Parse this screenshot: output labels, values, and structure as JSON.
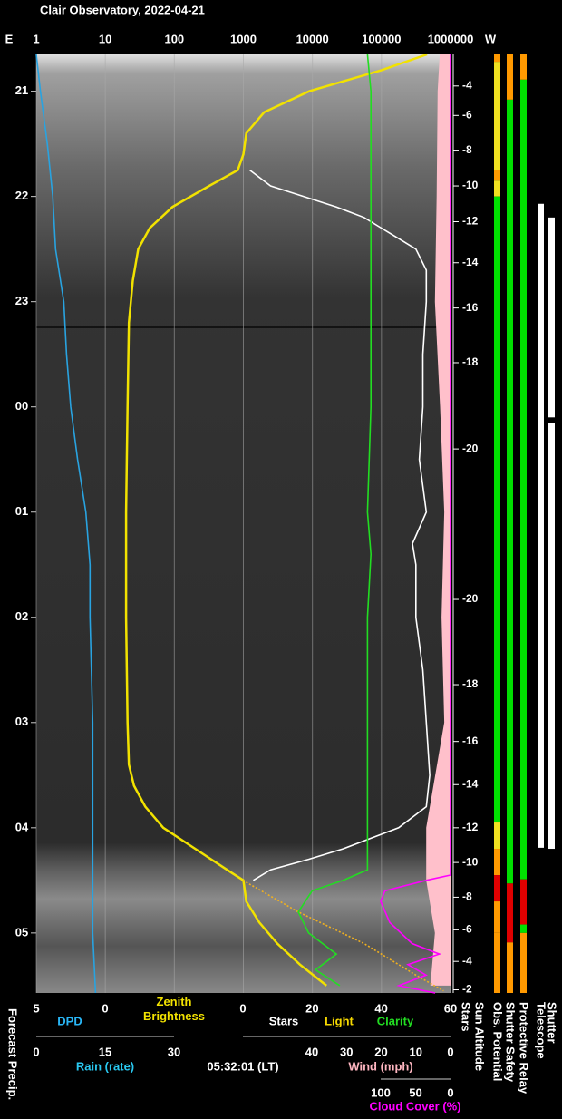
{
  "chart_data": {
    "type": "line",
    "title": "Clair Observatory, 2022-04-21",
    "left_label": "E",
    "right_label": "W",
    "timestamp": "05:32:01 (LT)",
    "side_labels": {
      "forecast_precip": "Forecast Precip.",
      "stars": "Stars"
    },
    "ylim": [
      20.65,
      29.57
    ],
    "yticks": [
      21,
      22,
      23,
      {
        "value": 24,
        "label": "00"
      },
      {
        "value": 25,
        "label": "01"
      },
      {
        "value": 26,
        "label": "02"
      },
      {
        "value": 27,
        "label": "03"
      },
      {
        "value": 28,
        "label": "04"
      },
      {
        "value": 29,
        "label": "05"
      }
    ],
    "grid": true,
    "x_axes": {
      "brightness": {
        "xlim": [
          1,
          1000000
        ],
        "xticks": [
          1,
          10,
          100,
          1000,
          10000,
          100000,
          1000000
        ],
        "log": true
      },
      "dpd": {
        "xlim": [
          5,
          0
        ],
        "xticks": [
          5,
          0
        ]
      },
      "percent": {
        "xlim": [
          0,
          60
        ],
        "xticks": [
          0,
          20,
          40,
          60
        ]
      },
      "rain": {
        "xlim": [
          0,
          30
        ],
        "xticks": [
          0,
          15,
          30
        ],
        "label": "Rain (rate)",
        "color": "#29c8f0"
      },
      "wind": {
        "xlim": [
          40,
          0
        ],
        "xticks": [
          40,
          30,
          20,
          10,
          0
        ]
      },
      "cloud": {
        "xlim": [
          100,
          0
        ],
        "xticks": [
          100,
          50,
          0
        ]
      }
    },
    "series": [
      {
        "name": "DPD",
        "axis": "dpd",
        "color": "#29a3e0",
        "times": [
          20.65,
          21,
          21.5,
          22,
          22.5,
          23,
          23.5,
          24,
          24.5,
          25,
          25.5,
          26,
          27,
          28,
          29,
          29.57
        ],
        "values": [
          5.0,
          4.7,
          4.2,
          3.8,
          3.6,
          3.0,
          2.8,
          2.5,
          2.0,
          1.4,
          1.1,
          1.1,
          0.9,
          0.9,
          0.9,
          0.7
        ]
      },
      {
        "name": "Zenith Brightness",
        "axis": "brightness",
        "color": "#f2e200",
        "times": [
          20.65,
          20.8,
          21,
          21.2,
          21.4,
          21.6,
          21.75,
          21.9,
          22.1,
          22.3,
          22.5,
          22.8,
          23.2,
          24,
          25,
          26,
          27,
          27.4,
          27.6,
          27.8,
          28,
          28.2,
          28.4,
          28.5,
          28.7,
          28.9,
          29.1,
          29.3,
          29.5
        ],
        "values": [
          457000,
          100000,
          9000,
          2000,
          1100,
          1000,
          830,
          320,
          94,
          44,
          30,
          25,
          22,
          21,
          20,
          20,
          21,
          22,
          26,
          38,
          69,
          200,
          580,
          1000,
          1100,
          1700,
          3100,
          6600,
          16000
        ]
      },
      {
        "name": "Stars",
        "axis": "percent",
        "color": "#ffffff",
        "times": [
          21.75,
          21.9,
          22,
          22.1,
          22.2,
          22.3,
          22.4,
          22.5,
          22.7,
          23,
          23.5,
          24,
          24.5,
          25,
          25.3,
          25.5,
          26,
          26.5,
          27,
          27.5,
          27.8,
          28,
          28.1,
          28.2,
          28.3,
          28.4,
          28.5
        ],
        "values": [
          2,
          8,
          17.5,
          27,
          35,
          40,
          45,
          50,
          53,
          53,
          52,
          52,
          51,
          53,
          49,
          50,
          50,
          52,
          53,
          54,
          53,
          45,
          37,
          29,
          19,
          8,
          3
        ]
      },
      {
        "name": "Light",
        "axis": "percent",
        "color": "#f0b020",
        "dashed": true,
        "times": [
          28.5,
          28.8,
          29.1,
          29.4,
          29.55
        ],
        "values": [
          0,
          16,
          35,
          50,
          58
        ]
      },
      {
        "name": "Clarity",
        "axis": "percent",
        "color": "#22dd22",
        "times": [
          20.65,
          21,
          22,
          23,
          24,
          25,
          25.4,
          26,
          27,
          28,
          28.4,
          28.5,
          28.6,
          28.8,
          29,
          29.2,
          29.35,
          29.5
        ],
        "values": [
          36,
          37,
          37,
          37,
          37,
          36,
          37,
          36,
          36,
          36,
          36,
          29,
          20,
          16,
          19,
          27,
          21,
          28
        ]
      },
      {
        "name": "Wind (mph)",
        "axis": "wind",
        "color": "#ffc0cb",
        "style": "area",
        "times": [
          20.65,
          21,
          22,
          23,
          24,
          25,
          26,
          27,
          28,
          28.5,
          29,
          29.5
        ],
        "values": [
          3.1,
          3.7,
          4.0,
          4.5,
          3.0,
          1.8,
          2.6,
          1.8,
          7.0,
          7.0,
          4.5,
          5.8
        ]
      },
      {
        "name": "Cloud Cover (%)",
        "axis": "cloud",
        "color": "#ff00ff",
        "times": [
          20.65,
          28.45,
          28.5,
          28.6,
          28.7,
          28.9,
          29.1,
          29.2,
          29.3,
          29.4,
          29.5,
          29.57
        ],
        "values": [
          0,
          0,
          35,
          94,
          100,
          87,
          55,
          16,
          61,
          35,
          74,
          22
        ]
      }
    ],
    "sun_altitude": {
      "title": "Sun Altitude",
      "times": [
        20.95,
        21.23,
        21.56,
        21.9,
        22.24,
        22.63,
        23.06,
        23.58,
        24.4,
        25.83,
        26.64,
        27.18,
        27.59,
        28.0,
        28.33,
        28.66,
        28.97,
        29.27,
        29.54
      ],
      "values": [
        -4,
        -6,
        -8,
        -10,
        -12,
        -14,
        -16,
        -18,
        -20,
        -20,
        -18,
        -16,
        -14,
        -12,
        -10,
        -8,
        -6,
        -4,
        -2
      ]
    },
    "status": [
      {
        "name": "Obs. Potential",
        "segments": [
          {
            "start": 20.65,
            "end": 20.72,
            "color": "#ff9900"
          },
          {
            "start": 20.72,
            "end": 21.75,
            "color": "#f0e020"
          },
          {
            "start": 21.75,
            "end": 21.85,
            "color": "#ff9900"
          },
          {
            "start": 21.85,
            "end": 22.0,
            "color": "#f0e020"
          },
          {
            "start": 22.0,
            "end": 27.95,
            "color": "#00e000"
          },
          {
            "start": 27.95,
            "end": 28.2,
            "color": "#f0e020"
          },
          {
            "start": 28.2,
            "end": 28.45,
            "color": "#ff9900"
          },
          {
            "start": 28.45,
            "end": 28.7,
            "color": "#e00000"
          },
          {
            "start": 28.7,
            "end": 29.0,
            "color": "#ff9900"
          },
          {
            "start": 29.0,
            "end": 29.57,
            "color": "#ff9900"
          }
        ]
      },
      {
        "name": "Shutter Safety",
        "segments": [
          {
            "start": 20.65,
            "end": 21.08,
            "color": "#ff9900"
          },
          {
            "start": 21.08,
            "end": 28.53,
            "color": "#00e000"
          },
          {
            "start": 28.53,
            "end": 29.09,
            "color": "#e00000"
          },
          {
            "start": 29.09,
            "end": 29.57,
            "color": "#ff9900"
          }
        ]
      },
      {
        "name": "Protective Relay",
        "segments": [
          {
            "start": 20.65,
            "end": 20.89,
            "color": "#ff9900"
          },
          {
            "start": 20.89,
            "end": 28.49,
            "color": "#00e000"
          },
          {
            "start": 28.49,
            "end": 28.92,
            "color": "#e00000"
          },
          {
            "start": 28.92,
            "end": 29.0,
            "color": "#00e000"
          },
          {
            "start": 29.0,
            "end": 29.57,
            "color": "#ff9900"
          }
        ]
      },
      {
        "name": "Telescope",
        "thin": true,
        "segments": [
          {
            "start": 22.07,
            "end": 28.19,
            "color": "#ffffff"
          }
        ]
      },
      {
        "name": "Shutter",
        "thin": true,
        "segments": [
          {
            "start": 22.2,
            "end": 24.1,
            "color": "#ffffff"
          },
          {
            "start": 24.15,
            "end": 28.2,
            "color": "#ffffff"
          }
        ]
      }
    ]
  }
}
